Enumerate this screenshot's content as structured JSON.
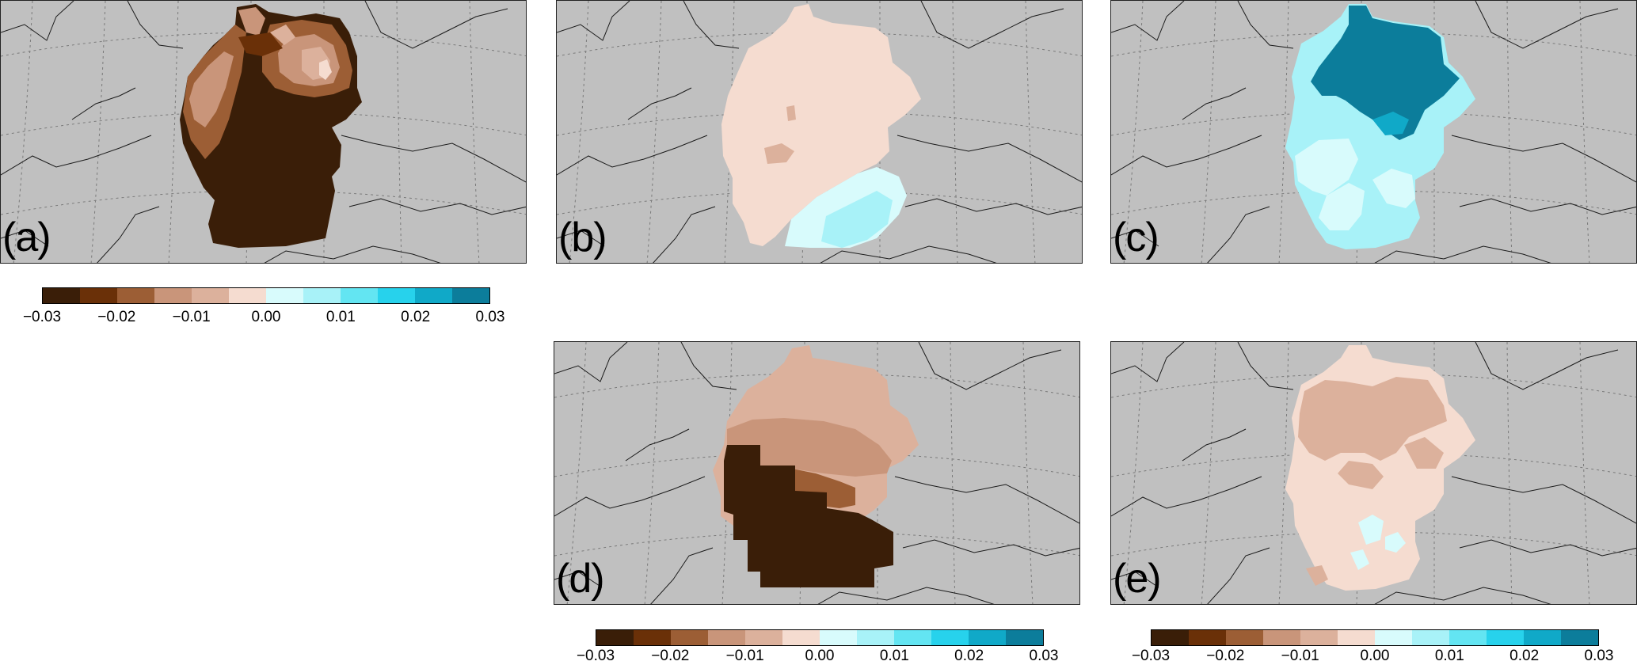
{
  "panels": [
    {
      "id": "a",
      "label": "(a)"
    },
    {
      "id": "b",
      "label": "(b)"
    },
    {
      "id": "c",
      "label": "(c)"
    },
    {
      "id": "d",
      "label": "(d)"
    },
    {
      "id": "e",
      "label": "(e)"
    }
  ],
  "colorbar": {
    "colors": [
      "#3a1e08",
      "#6a3008",
      "#9c5e35",
      "#c9957a",
      "#dcb19c",
      "#f5dcd0",
      "#d8fbfc",
      "#a8f2f8",
      "#63e5f2",
      "#27d2ec",
      "#10a9c8",
      "#0c7d9b"
    ],
    "tick_labels": [
      "−0.03",
      "−0.02",
      "−0.01",
      "0.00",
      "0.01",
      "0.02",
      "0.03"
    ],
    "range": [
      -0.03,
      0.03
    ],
    "step": 0.005
  },
  "colors": {
    "background_gray": "#c0c0c0",
    "land_outline": "#1a1a1a",
    "graticule": "#7a7a7a"
  }
}
